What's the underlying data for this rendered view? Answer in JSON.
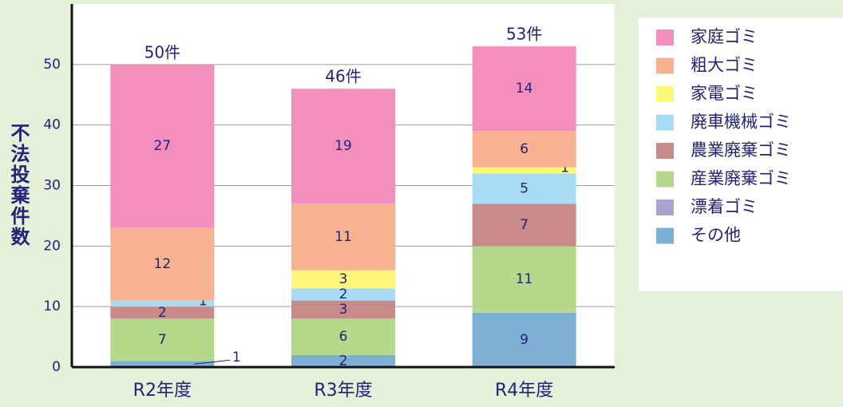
{
  "chart_data": {
    "type": "stacked_bar",
    "y_label": "不法投棄件数",
    "categories": [
      "R2年度",
      "R3年度",
      "R4年度"
    ],
    "series": [
      {
        "name": "家庭ゴミ",
        "color": "#f48fbd",
        "values": [
          27,
          19,
          14
        ]
      },
      {
        "name": "粗大ゴミ",
        "color": "#f9b28f",
        "values": [
          12,
          11,
          6
        ]
      },
      {
        "name": "家電ゴミ",
        "color": "#fff77a",
        "values": [
          0,
          3,
          1
        ]
      },
      {
        "name": "廃車機械ゴミ",
        "color": "#a8dcf5",
        "values": [
          1,
          2,
          5
        ]
      },
      {
        "name": "農業廃棄ゴミ",
        "color": "#c98a8a",
        "values": [
          2,
          3,
          7
        ]
      },
      {
        "name": "産業廃棄ゴミ",
        "color": "#b5d98a",
        "values": [
          7,
          6,
          11
        ]
      },
      {
        "name": "漂着ゴミ",
        "color": "#a9a3d3",
        "values": [
          0,
          0,
          0
        ]
      },
      {
        "name": "その他",
        "color": "#7bafd4",
        "values": [
          1,
          2,
          9
        ]
      }
    ],
    "totals": {
      "values": [
        50,
        46,
        53
      ],
      "value_labels": [
        "50件",
        "46件",
        "53件"
      ]
    },
    "ylim": [
      0,
      60
    ],
    "yticks": [
      0,
      10,
      20,
      30,
      40,
      50
    ],
    "grid": true,
    "legend": "right"
  }
}
